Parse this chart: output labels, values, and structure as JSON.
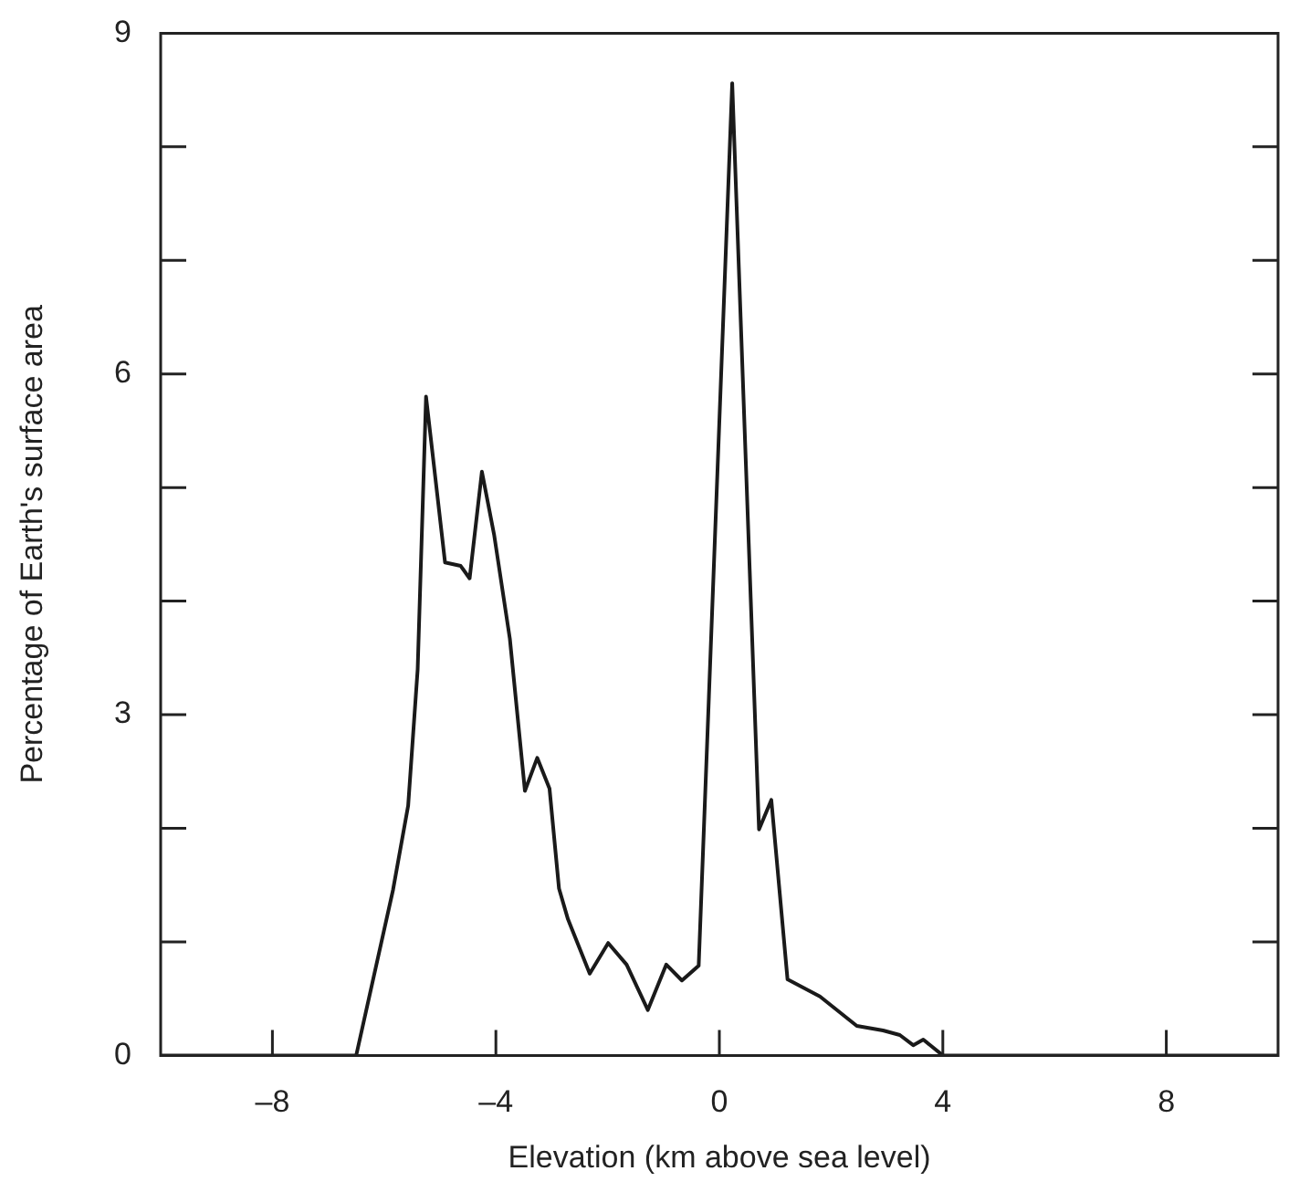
{
  "chart_data": {
    "type": "line",
    "xlabel": "Elevation (km above sea level)",
    "ylabel": "Percentage of Earth's surface area",
    "xlim": [
      -10,
      10
    ],
    "ylim": [
      0,
      9
    ],
    "xticks": [
      {
        "value": -8,
        "label": "–8"
      },
      {
        "value": -4,
        "label": "–4"
      },
      0,
      4,
      8
    ],
    "yticks": [
      0,
      {
        "value": 1,
        "label": null
      },
      {
        "value": 2,
        "label": null
      },
      3,
      {
        "value": 4,
        "label": null
      },
      {
        "value": 5,
        "label": null
      },
      6,
      {
        "value": 7,
        "label": null
      },
      {
        "value": 8,
        "label": null
      },
      9
    ],
    "marker": "none",
    "series": [
      {
        "color": "#1a1a1a",
        "x": [
          -10,
          -6.5,
          -5.84,
          -5.57,
          -5.4,
          -5.25,
          -4.91,
          -4.63,
          -4.47,
          -4.25,
          -4.03,
          -3.75,
          -3.48,
          -3.26,
          -3.04,
          -2.87,
          -2.71,
          -2.32,
          -1.99,
          -1.66,
          -1.28,
          -0.95,
          -0.67,
          -0.37,
          0.23,
          0.71,
          0.93,
          1.22,
          1.8,
          2.46,
          2.93,
          3.23,
          3.47,
          3.65,
          4.0,
          10
        ],
        "values": [
          0,
          0,
          1.46,
          2.2,
          3.4,
          5.8,
          4.34,
          4.31,
          4.2,
          5.14,
          4.58,
          3.67,
          2.33,
          2.62,
          2.35,
          1.47,
          1.2,
          0.72,
          0.99,
          0.8,
          0.4,
          0.8,
          0.66,
          0.79,
          8.56,
          1.99,
          2.25,
          0.67,
          0.52,
          0.26,
          0.22,
          0.18,
          0.09,
          0.14,
          0,
          0
        ]
      }
    ]
  }
}
